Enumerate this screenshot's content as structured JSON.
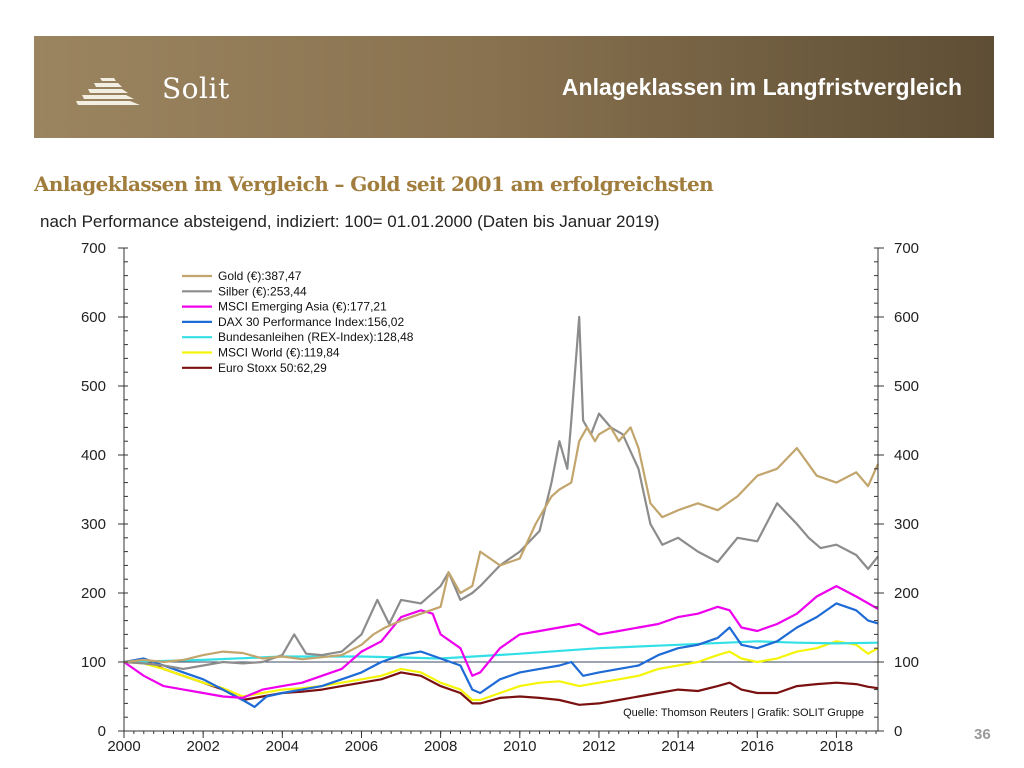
{
  "header": {
    "logo_text": "Solit",
    "title": "Anlageklassen im Langfristvergleich"
  },
  "headline": "Anlageklassen im Vergleich – Gold seit 2001 am erfolgreichsten",
  "subline": "nach Performance absteigend, indiziert: 100= 01.01.2000 (Daten bis Januar 2019)",
  "page_number": "36",
  "colors": {
    "banner": "#8a7350",
    "headline": "#a07d3c",
    "gold": "#c2a56c",
    "silver": "#8c8c8c",
    "msci_asia": "#ee00ee",
    "dax": "#1e6bd6",
    "rex": "#33e0e6",
    "msci_world": "#f5f50a",
    "eurostoxx": "#7a1010"
  },
  "chart_data": {
    "type": "line",
    "title": "",
    "xlabel": "",
    "ylabel": "",
    "xlim": [
      2000,
      2019.05
    ],
    "ylim": [
      0,
      700
    ],
    "x_ticks": [
      "2000",
      "2002",
      "2004",
      "2006",
      "2008",
      "2010",
      "2012",
      "2014",
      "2016",
      "2018"
    ],
    "y_ticks": [
      "0",
      "100",
      "200",
      "300",
      "400",
      "500",
      "600",
      "700"
    ],
    "reference_line": 100,
    "source": "Quelle: Thomson Reuters | Grafik: SOLIT Gruppe",
    "legend_position": "top-left",
    "series": [
      {
        "name": "Gold (€):387,47",
        "color_key": "gold",
        "x": [
          2000,
          2000.5,
          2001,
          2001.5,
          2002,
          2002.5,
          2003,
          2003.5,
          2004,
          2004.5,
          2005,
          2005.5,
          2006,
          2006.3,
          2006.6,
          2007,
          2007.5,
          2008,
          2008.2,
          2008.5,
          2008.8,
          2009,
          2009.5,
          2010,
          2010.4,
          2010.8,
          2011,
          2011.3,
          2011.5,
          2011.7,
          2011.9,
          2012,
          2012.3,
          2012.5,
          2012.8,
          2013,
          2013.3,
          2013.6,
          2014,
          2014.5,
          2015,
          2015.5,
          2016,
          2016.5,
          2017,
          2017.5,
          2018,
          2018.5,
          2018.8,
          2019.05
        ],
        "y": [
          100,
          103,
          100,
          103,
          110,
          115,
          113,
          105,
          108,
          104,
          107,
          110,
          125,
          140,
          150,
          160,
          170,
          180,
          230,
          200,
          210,
          260,
          240,
          250,
          300,
          340,
          350,
          360,
          420,
          440,
          420,
          430,
          440,
          420,
          440,
          410,
          330,
          310,
          320,
          330,
          320,
          340,
          370,
          380,
          410,
          370,
          360,
          375,
          355,
          387
        ]
      },
      {
        "name": "Silber (€):253,44",
        "color_key": "silver",
        "x": [
          2000,
          2000.5,
          2001,
          2001.5,
          2002,
          2002.5,
          2003,
          2003.5,
          2004,
          2004.3,
          2004.6,
          2005,
          2005.5,
          2006,
          2006.4,
          2006.7,
          2007,
          2007.5,
          2008,
          2008.2,
          2008.5,
          2008.8,
          2009,
          2009.5,
          2010,
          2010.5,
          2010.8,
          2011,
          2011.2,
          2011.3,
          2011.5,
          2011.6,
          2011.8,
          2012,
          2012.3,
          2012.6,
          2013,
          2013.3,
          2013.6,
          2014,
          2014.5,
          2015,
          2015.5,
          2016,
          2016.5,
          2017,
          2017.3,
          2017.6,
          2018,
          2018.5,
          2018.8,
          2019.05
        ],
        "y": [
          100,
          98,
          95,
          90,
          95,
          100,
          98,
          100,
          110,
          140,
          112,
          110,
          115,
          140,
          190,
          155,
          190,
          185,
          210,
          230,
          190,
          200,
          210,
          240,
          260,
          290,
          360,
          420,
          380,
          450,
          600,
          450,
          430,
          460,
          440,
          430,
          380,
          300,
          270,
          280,
          260,
          245,
          280,
          275,
          330,
          300,
          280,
          265,
          270,
          255,
          235,
          253
        ]
      },
      {
        "name": "MSCI Emerging Asia (€):177,21",
        "color_key": "msci_asia",
        "x": [
          2000,
          2000.5,
          2001,
          2001.5,
          2002,
          2002.5,
          2003,
          2003.5,
          2004,
          2004.5,
          2005,
          2005.5,
          2006,
          2006.5,
          2007,
          2007.5,
          2007.8,
          2008,
          2008.5,
          2008.8,
          2009,
          2009.5,
          2010,
          2010.5,
          2011,
          2011.5,
          2012,
          2012.5,
          2013,
          2013.5,
          2014,
          2014.5,
          2015,
          2015.3,
          2015.6,
          2016,
          2016.5,
          2017,
          2017.5,
          2018,
          2018.5,
          2019.05
        ],
        "y": [
          100,
          80,
          65,
          60,
          55,
          50,
          48,
          60,
          65,
          70,
          80,
          90,
          115,
          130,
          165,
          175,
          170,
          140,
          120,
          80,
          85,
          120,
          140,
          145,
          150,
          155,
          140,
          145,
          150,
          155,
          165,
          170,
          180,
          175,
          150,
          145,
          155,
          170,
          195,
          210,
          195,
          177
        ]
      },
      {
        "name": "DAX 30 Performance Index:156,02",
        "color_key": "dax",
        "x": [
          2000,
          2000.5,
          2001,
          2001.5,
          2002,
          2002.5,
          2003,
          2003.3,
          2003.6,
          2004,
          2004.5,
          2005,
          2005.5,
          2006,
          2006.5,
          2007,
          2007.5,
          2008,
          2008.5,
          2008.8,
          2009,
          2009.5,
          2010,
          2010.5,
          2011,
          2011.3,
          2011.6,
          2012,
          2012.5,
          2013,
          2013.5,
          2014,
          2014.5,
          2015,
          2015.3,
          2015.6,
          2016,
          2016.5,
          2017,
          2017.5,
          2018,
          2018.5,
          2018.8,
          2019.05
        ],
        "y": [
          100,
          105,
          95,
          85,
          75,
          60,
          45,
          35,
          50,
          55,
          60,
          65,
          75,
          85,
          100,
          110,
          115,
          105,
          95,
          60,
          55,
          75,
          85,
          90,
          95,
          100,
          80,
          85,
          90,
          95,
          110,
          120,
          125,
          135,
          150,
          125,
          120,
          130,
          150,
          165,
          185,
          175,
          160,
          156
        ]
      },
      {
        "name": "Bundesanleihen (REX-Index):128,48",
        "color_key": "rex",
        "x": [
          2000,
          2002,
          2004,
          2006,
          2008,
          2010,
          2012,
          2014,
          2016,
          2017,
          2018,
          2019.05
        ],
        "y": [
          100,
          103,
          108,
          108,
          105,
          112,
          120,
          125,
          130,
          128,
          127,
          128
        ]
      },
      {
        "name": "MSCI World (€):119,84",
        "color_key": "msci_world",
        "x": [
          2000,
          2000.5,
          2001,
          2001.5,
          2002,
          2002.5,
          2003,
          2003.5,
          2004,
          2004.5,
          2005,
          2005.5,
          2006,
          2006.5,
          2007,
          2007.5,
          2008,
          2008.5,
          2008.8,
          2009,
          2009.5,
          2010,
          2010.5,
          2011,
          2011.5,
          2012,
          2012.5,
          2013,
          2013.5,
          2014,
          2014.5,
          2015,
          2015.3,
          2015.6,
          2016,
          2016.5,
          2017,
          2017.5,
          2018,
          2018.5,
          2018.8,
          2019.05
        ],
        "y": [
          100,
          98,
          90,
          80,
          70,
          62,
          50,
          55,
          60,
          62,
          65,
          70,
          75,
          80,
          90,
          85,
          70,
          60,
          45,
          45,
          55,
          65,
          70,
          72,
          65,
          70,
          75,
          80,
          90,
          95,
          100,
          110,
          115,
          105,
          100,
          105,
          115,
          120,
          130,
          125,
          112,
          120
        ]
      },
      {
        "name": "Euro Stoxx 50:62,29",
        "color_key": "eurostoxx",
        "x": [
          2000,
          2000.5,
          2001,
          2001.5,
          2002,
          2002.5,
          2003,
          2003.5,
          2004,
          2004.5,
          2005,
          2005.5,
          2006,
          2006.5,
          2007,
          2007.5,
          2008,
          2008.5,
          2008.8,
          2009,
          2009.5,
          2010,
          2010.5,
          2011,
          2011.5,
          2012,
          2012.5,
          2013,
          2013.5,
          2014,
          2014.5,
          2015,
          2015.3,
          2015.6,
          2016,
          2016.5,
          2017,
          2017.5,
          2018,
          2018.5,
          2018.8,
          2019.05
        ],
        "y": [
          100,
          102,
          90,
          80,
          70,
          60,
          45,
          50,
          55,
          57,
          60,
          65,
          70,
          75,
          85,
          80,
          65,
          55,
          40,
          40,
          48,
          50,
          48,
          45,
          38,
          40,
          45,
          50,
          55,
          60,
          58,
          65,
          70,
          60,
          55,
          55,
          65,
          68,
          70,
          68,
          64,
          62
        ]
      }
    ]
  }
}
